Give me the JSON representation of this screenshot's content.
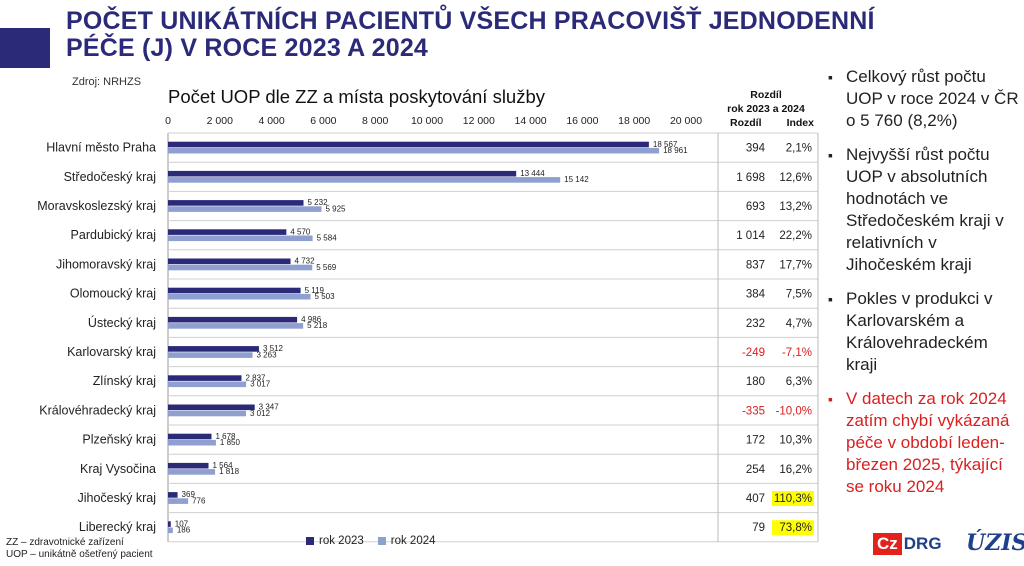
{
  "header": {
    "title": "POČET UNIKÁTNÍCH PACIENTŮ VŠECH PRACOVIŠŤ JEDNODENNÍ PÉČE (J) V ROCE 2023 A 2024",
    "source": "Zdroj: NRHZS"
  },
  "chart_data": {
    "type": "bar",
    "orientation": "horizontal",
    "title": "Počet UOP dle ZZ a místa poskytování služby",
    "xlim": [
      0,
      20000
    ],
    "x_ticks": [
      "0",
      "2 000",
      "4 000",
      "6 000",
      "8 000",
      "10 000",
      "12 000",
      "14 000",
      "16 000",
      "18 000",
      "20 000"
    ],
    "categories": [
      "Hlavní město Praha",
      "Středočeský kraj",
      "Moravskoslezský kraj",
      "Pardubický kraj",
      "Jihomoravský kraj",
      "Olomoucký kraj",
      "Ústecký kraj",
      "Karlovarský kraj",
      "Zlínský kraj",
      "Královéhradecký kraj",
      "Plzeňský kraj",
      "Kraj Vysočina",
      "Jihočeský kraj",
      "Liberecký kraj"
    ],
    "series": [
      {
        "name": "rok 2023",
        "color": "#2b2a78",
        "values": [
          18567,
          13444,
          5232,
          4570,
          4732,
          5119,
          4986,
          3512,
          2837,
          3347,
          1678,
          1564,
          369,
          107
        ],
        "labels": [
          "18 567",
          "13 444",
          "5 232",
          "4 570",
          "4 732",
          "5 119",
          "4 986",
          "3 512",
          "2 837",
          "3 347",
          "1 678",
          "1 564",
          "369",
          "107"
        ]
      },
      {
        "name": "rok 2024",
        "color": "#8f9fd0",
        "values": [
          18961,
          15142,
          5925,
          5584,
          5569,
          5503,
          5218,
          3263,
          3017,
          3012,
          1850,
          1818,
          776,
          186
        ],
        "labels": [
          "18 961",
          "15 142",
          "5 925",
          "5 584",
          "5 569",
          "5 503",
          "5 218",
          "3 263",
          "3 017",
          "3 012",
          "1 850",
          "1 818",
          "776",
          "186"
        ]
      }
    ],
    "difference_table": {
      "header_line1": "Rozdíl",
      "header_line2": "rok 2023 a 2024",
      "col_abs": "Rozdíl",
      "col_index": "Index",
      "rows": [
        {
          "abs": "394",
          "index": "2,1%",
          "negative": false,
          "highlight": false
        },
        {
          "abs": "1 698",
          "index": "12,6%",
          "negative": false,
          "highlight": false
        },
        {
          "abs": "693",
          "index": "13,2%",
          "negative": false,
          "highlight": false
        },
        {
          "abs": "1 014",
          "index": "22,2%",
          "negative": false,
          "highlight": false
        },
        {
          "abs": "837",
          "index": "17,7%",
          "negative": false,
          "highlight": false
        },
        {
          "abs": "384",
          "index": "7,5%",
          "negative": false,
          "highlight": false
        },
        {
          "abs": "232",
          "index": "4,7%",
          "negative": false,
          "highlight": false
        },
        {
          "abs": "-249",
          "index": "-7,1%",
          "negative": true,
          "highlight": false
        },
        {
          "abs": "180",
          "index": "6,3%",
          "negative": false,
          "highlight": false
        },
        {
          "abs": "-335",
          "index": "-10,0%",
          "negative": true,
          "highlight": false
        },
        {
          "abs": "172",
          "index": "10,3%",
          "negative": false,
          "highlight": false
        },
        {
          "abs": "254",
          "index": "16,2%",
          "negative": false,
          "highlight": false
        },
        {
          "abs": "407",
          "index": "110,3%",
          "negative": false,
          "highlight": true
        },
        {
          "abs": "79",
          "index": "73,8%",
          "negative": false,
          "highlight": true
        }
      ]
    },
    "colors": {
      "negative": "#d92020",
      "highlight": "#ffff00"
    },
    "legend": [
      "rok 2023",
      "rok 2024"
    ]
  },
  "bullets": [
    {
      "text": "Celkový růst počtu UOP v roce 2024 v ČR o 5 760 (8,2%)",
      "red": false
    },
    {
      "text": "Nejvyšší růst počtu UOP v absolutních hodnotách ve Středočeském kraji v relativních v Jihočeském kraji",
      "red": false
    },
    {
      "text": "Pokles v produkci v Karlovarském a Královehradeckém kraji",
      "red": false
    },
    {
      "text": "V datech za rok 2024 zatím chybí vykázaná péče v období leden-březen 2025, týkající se roku 2024",
      "red": true
    }
  ],
  "bullet_marker": "▪",
  "footer": {
    "line1": "ZZ – zdravotnické zařízení",
    "line2": "UOP – unikátně ošetřený pacient"
  },
  "logos": {
    "czdrg_cz": "Cz",
    "czdrg_drg": "DRG",
    "uzis": "ÚZIS"
  }
}
